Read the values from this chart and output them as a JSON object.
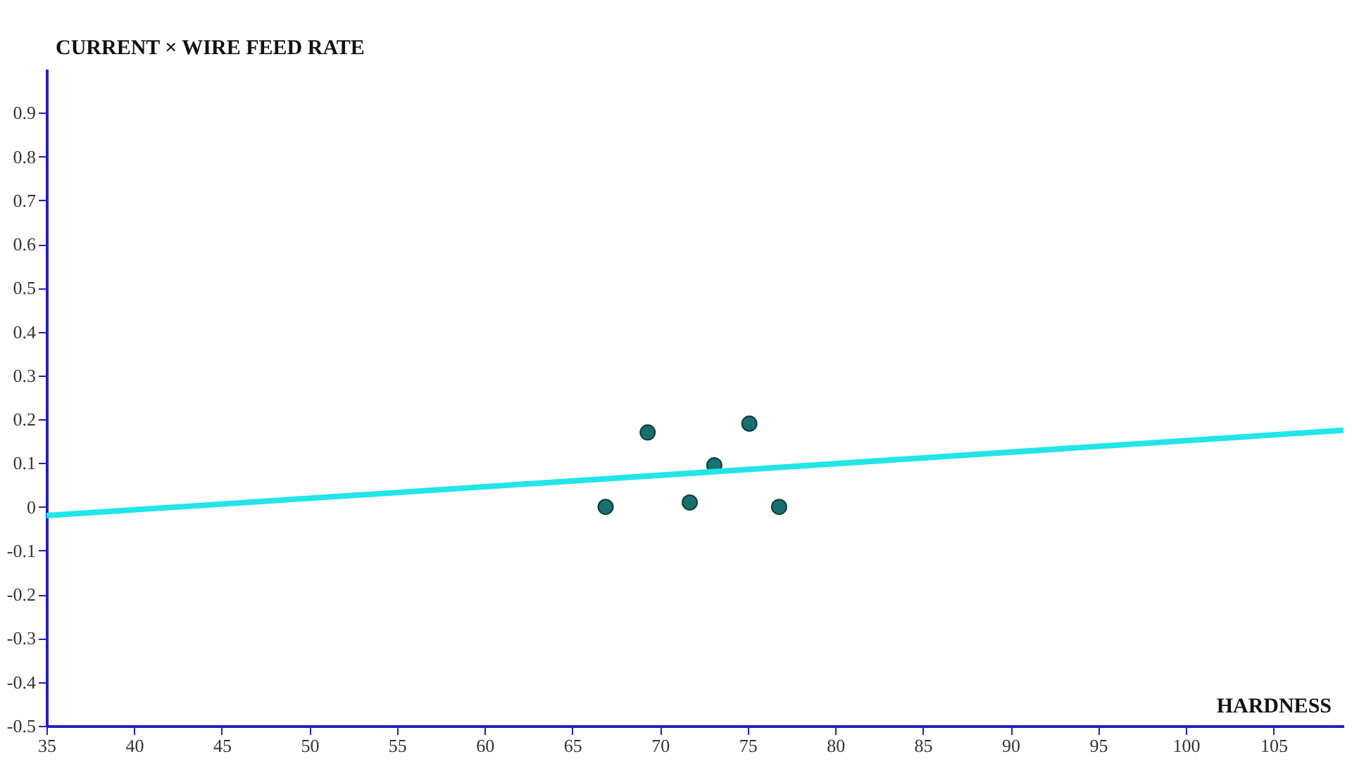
{
  "chart_data": {
    "type": "scatter",
    "xlabel": "HARDNESS",
    "ylabel": "CURRENT × WIRE FEED RATE",
    "xlim": [
      35,
      109
    ],
    "ylim": [
      -0.5,
      1.0
    ],
    "xticks": [
      35,
      40,
      45,
      50,
      55,
      60,
      65,
      70,
      75,
      80,
      85,
      90,
      95,
      100,
      105
    ],
    "yticks": [
      -0.5,
      -0.4,
      -0.3,
      -0.2,
      -0.1,
      0,
      0.1,
      0.2,
      0.3,
      0.4,
      0.5,
      0.6,
      0.7,
      0.8,
      0.9
    ],
    "grid": false,
    "marker": "circle",
    "series": [
      {
        "color": "#17706e",
        "x": [
          66.9,
          69.3,
          71.7,
          73.1,
          75.1,
          76.8
        ],
        "values": [
          0,
          0.17,
          0.01,
          0.095,
          0.19,
          0
        ]
      },
      {
        "type": "line",
        "marker": "none",
        "line_style": "solid",
        "color": "#22e5e8",
        "x": [
          35,
          109
        ],
        "values": [
          -0.02,
          0.175
        ]
      }
    ]
  }
}
